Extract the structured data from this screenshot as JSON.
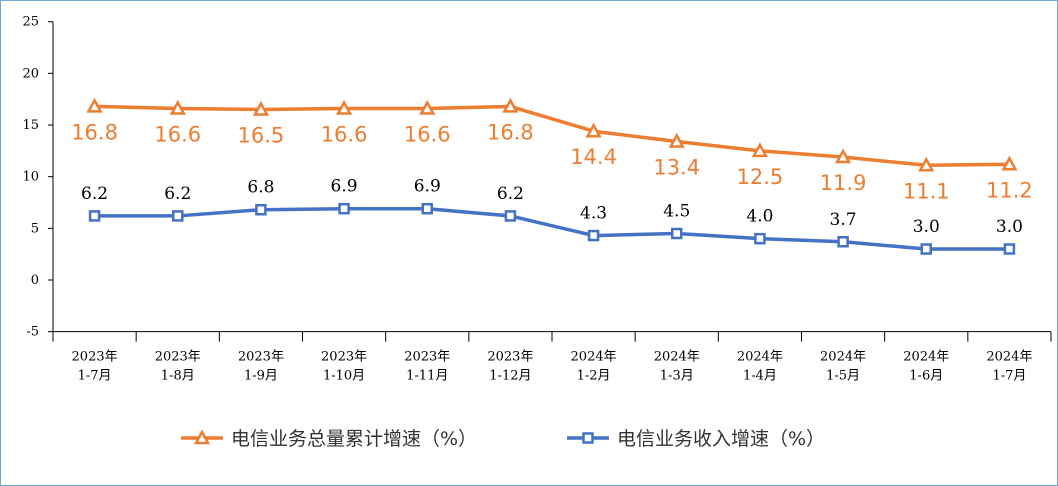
{
  "colors": {
    "series_a": "#ed7d31",
    "series_b": "#4472c4",
    "axis": "#000000",
    "border": "#6fa8d8"
  },
  "chart_data": {
    "type": "line",
    "categories": [
      [
        "2023年",
        "1-7月"
      ],
      [
        "2023年",
        "1-8月"
      ],
      [
        "2023年",
        "1-9月"
      ],
      [
        "2023年",
        "1-10月"
      ],
      [
        "2023年",
        "1-11月"
      ],
      [
        "2023年",
        "1-12月"
      ],
      [
        "2024年",
        "1-2月"
      ],
      [
        "2024年",
        "1-3月"
      ],
      [
        "2024年",
        "1-4月"
      ],
      [
        "2024年",
        "1-5月"
      ],
      [
        "2024年",
        "1-6月"
      ],
      [
        "2024年",
        "1-7月"
      ]
    ],
    "series": [
      {
        "name": "电信业务总量累计增速（%）",
        "marker": "triangle",
        "values": [
          16.8,
          16.6,
          16.5,
          16.6,
          16.6,
          16.8,
          14.4,
          13.4,
          12.5,
          11.9,
          11.1,
          11.2
        ],
        "labels": [
          "16.8",
          "16.6",
          "16.5",
          "16.6",
          "16.6",
          "16.8",
          "14.4",
          "13.4",
          "12.5",
          "11.9",
          "11.1",
          "11.2"
        ]
      },
      {
        "name": "电信业务收入增速（%）",
        "marker": "square",
        "values": [
          6.2,
          6.2,
          6.8,
          6.9,
          6.9,
          6.2,
          4.3,
          4.5,
          4.0,
          3.7,
          3.0,
          3.0
        ],
        "labels": [
          "6.2",
          "6.2",
          "6.8",
          "6.9",
          "6.9",
          "6.2",
          "4.3",
          "4.5",
          "4.0",
          "3.7",
          "3.0",
          "3.0"
        ]
      }
    ],
    "y_ticks": [
      "25",
      "20",
      "15",
      "10",
      "5",
      "0",
      "-5"
    ],
    "ylim": [
      -5,
      25
    ],
    "grid": false,
    "legend": "bottom"
  }
}
